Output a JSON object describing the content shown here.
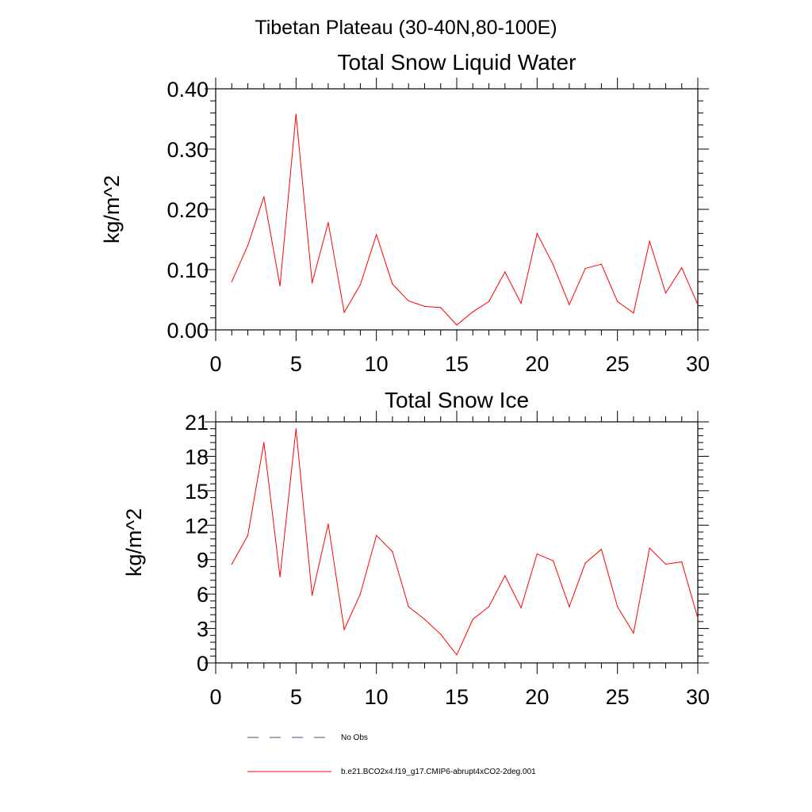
{
  "figure": {
    "title": "Tibetan Plateau (30-40N,80-100E)"
  },
  "chart_data": [
    {
      "type": "line",
      "title": "Total Snow Liquid Water",
      "xlabel": "",
      "ylabel": "kg/m^2",
      "xlim": [
        0,
        30
      ],
      "ylim": [
        0,
        0.4
      ],
      "xticks": [
        0,
        5,
        10,
        15,
        20,
        25,
        30
      ],
      "xtick_labels": [
        "0",
        "5",
        "10",
        "15",
        "20",
        "25",
        "30"
      ],
      "yticks": [
        0,
        0.1,
        0.2,
        0.3,
        0.4
      ],
      "ytick_labels": [
        "0.00",
        "0.10",
        "0.20",
        "0.30",
        "0.40"
      ],
      "x": [
        1,
        2,
        3,
        4,
        5,
        6,
        7,
        8,
        9,
        10,
        11,
        12,
        13,
        14,
        15,
        16,
        17,
        18,
        19,
        20,
        21,
        22,
        23,
        24,
        25,
        26,
        27,
        28,
        29,
        30
      ],
      "series": [
        {
          "name": "b.e21.BCO2x4.f19_g17.CMIP6-abrupt4xCO2-2deg.001",
          "color": "#ff0000",
          "values": [
            0.08,
            0.14,
            0.221,
            0.073,
            0.358,
            0.078,
            0.178,
            0.029,
            0.075,
            0.158,
            0.076,
            0.048,
            0.039,
            0.037,
            0.008,
            0.03,
            0.047,
            0.096,
            0.044,
            0.16,
            0.108,
            0.042,
            0.102,
            0.109,
            0.047,
            0.028,
            0.147,
            0.061,
            0.103,
            0.042
          ]
        }
      ]
    },
    {
      "type": "line",
      "title": "Total Snow Ice",
      "xlabel": "",
      "ylabel": "kg/m^2",
      "xlim": [
        0,
        30
      ],
      "ylim": [
        0,
        21
      ],
      "xticks": [
        0,
        5,
        10,
        15,
        20,
        25,
        30
      ],
      "xtick_labels": [
        "0",
        "5",
        "10",
        "15",
        "20",
        "25",
        "30"
      ],
      "yticks": [
        0,
        3,
        6,
        9,
        12,
        15,
        18,
        21
      ],
      "ytick_labels": [
        "0",
        "3",
        "6",
        "9",
        "12",
        "15",
        "18",
        "21"
      ],
      "x": [
        1,
        2,
        3,
        4,
        5,
        6,
        7,
        8,
        9,
        10,
        11,
        12,
        13,
        14,
        15,
        16,
        17,
        18,
        19,
        20,
        21,
        22,
        23,
        24,
        25,
        26,
        27,
        28,
        29,
        30
      ],
      "series": [
        {
          "name": "b.e21.BCO2x4.f19_g17.CMIP6-abrupt4xCO2-2deg.001",
          "color": "#ff0000",
          "values": [
            8.6,
            11.1,
            19.2,
            7.5,
            20.4,
            5.9,
            12.1,
            2.9,
            6.0,
            11.1,
            9.7,
            4.9,
            3.8,
            2.5,
            0.7,
            3.8,
            4.9,
            7.6,
            4.8,
            9.5,
            8.9,
            4.9,
            8.7,
            9.9,
            4.9,
            2.6,
            10.0,
            8.6,
            8.8,
            3.9
          ]
        }
      ]
    }
  ],
  "legend": {
    "items": [
      {
        "label": "No Obs",
        "style": "dashed",
        "color": "#4a4a7a"
      },
      {
        "label": "b.e21.BCO2x4.f19_g17.CMIP6-abrupt4xCO2-2deg.001",
        "style": "solid",
        "color": "#ff0000"
      }
    ]
  }
}
